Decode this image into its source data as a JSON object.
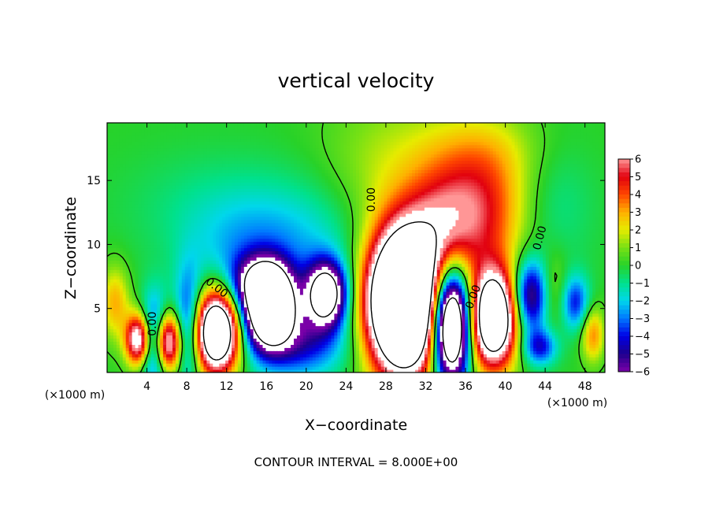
{
  "chart_data": {
    "type": "heatmap",
    "title": "vertical velocity",
    "xlabel": "X−coordinate",
    "ylabel": "Z−coordinate",
    "x_unit": "(×1000 m)",
    "y_unit": "(×1000 m)",
    "footer": "CONTOUR INTERVAL = 8.000E+00",
    "xlim": [
      0,
      50
    ],
    "ylim": [
      0,
      19.5
    ],
    "x_ticks": [
      4,
      8,
      12,
      16,
      20,
      24,
      28,
      32,
      36,
      40,
      44,
      48
    ],
    "y_ticks": [
      5,
      10,
      15
    ],
    "colorbar": {
      "min": -6,
      "max": 6,
      "ticks": [
        6,
        5,
        4,
        3,
        2,
        1,
        0,
        -1,
        -2,
        -3,
        -4,
        -5,
        -6
      ],
      "tick_labels": [
        "6",
        "5",
        "4",
        "3",
        "2",
        "1",
        "0",
        "−1",
        "−2",
        "−3",
        "−4",
        "−5",
        "−6"
      ]
    },
    "contour_labels": [
      {
        "text": "0.00",
        "x": 26.6,
        "y": 13.5,
        "rotate": -90
      },
      {
        "text": "0.00",
        "x": 11.0,
        "y": 6.6,
        "rotate": 38
      },
      {
        "text": "0.00",
        "x": 4.6,
        "y": 3.8,
        "rotate": -90
      },
      {
        "text": "0.00",
        "x": 36.8,
        "y": 5.9,
        "rotate": -70
      },
      {
        "text": "0.00",
        "x": 43.5,
        "y": 10.5,
        "rotate": -75
      }
    ],
    "features": [
      {
        "x": 3.2,
        "z": 2.6,
        "sx": 0.9,
        "sz": 1.4,
        "w": 9
      },
      {
        "x": 6.0,
        "z": 2.4,
        "sx": 1.0,
        "sz": 1.6,
        "w": 10
      },
      {
        "x": 11.0,
        "z": 3.2,
        "sx": 1.6,
        "sz": 2.2,
        "w": 14
      },
      {
        "x": 29.8,
        "z": 5.5,
        "sx": 2.5,
        "sz": 3.8,
        "w": 20
      },
      {
        "x": 38.8,
        "z": 4.2,
        "sx": 1.6,
        "sz": 2.6,
        "w": 13
      },
      {
        "x": 37.5,
        "z": 12.5,
        "sx": 3.5,
        "sz": 3.5,
        "w": 4.5
      },
      {
        "x": 33.5,
        "z": 11.0,
        "sx": 2.5,
        "sz": 3.0,
        "w": 3.0
      },
      {
        "x": 28.5,
        "z": 15.5,
        "sx": 5.0,
        "sz": 4.5,
        "w": 1.5
      },
      {
        "x": 38.0,
        "z": 17.5,
        "sx": 5.0,
        "sz": 2.5,
        "w": 1.5
      },
      {
        "x": 0.8,
        "z": 5.5,
        "sx": 1.0,
        "sz": 2.0,
        "w": 3.0
      },
      {
        "x": 48.8,
        "z": 3.0,
        "sx": 0.8,
        "sz": 1.5,
        "w": 3.5
      },
      {
        "x": 45.0,
        "z": 6.5,
        "sx": 1.0,
        "sz": 2.0,
        "w": 1.5
      },
      {
        "x": 16.3,
        "z": 5.0,
        "sx": 1.6,
        "sz": 1.9,
        "w": -14
      },
      {
        "x": 15.5,
        "z": 7.0,
        "sx": 2.0,
        "sz": 1.5,
        "w": -6
      },
      {
        "x": 22.0,
        "z": 6.2,
        "sx": 1.4,
        "sz": 1.7,
        "w": -10
      },
      {
        "x": 34.5,
        "z": 3.8,
        "sx": 1.3,
        "sz": 3.0,
        "w": -16
      },
      {
        "x": 4.8,
        "z": 2.5,
        "sx": 1.0,
        "sz": 2.3,
        "w": -7
      },
      {
        "x": 8.2,
        "z": 3.5,
        "sx": 1.0,
        "sz": 3.0,
        "w": -5
      },
      {
        "x": 19.0,
        "z": 2.5,
        "sx": 3.5,
        "sz": 2.0,
        "w": -4.5
      },
      {
        "x": 42.5,
        "z": 6.0,
        "sx": 1.2,
        "sz": 2.0,
        "w": -6
      },
      {
        "x": 43.5,
        "z": 2.0,
        "sx": 1.2,
        "sz": 1.0,
        "w": -4
      },
      {
        "x": 47.0,
        "z": 5.5,
        "sx": 1.0,
        "sz": 1.5,
        "w": -4
      },
      {
        "x": 19.5,
        "z": 10.0,
        "sx": 5.0,
        "sz": 3.5,
        "w": -2.0
      },
      {
        "x": 13.0,
        "z": 9.0,
        "sx": 4.0,
        "sz": 3.0,
        "w": -1.5
      },
      {
        "x": 44.5,
        "z": 13.5,
        "sx": 3.0,
        "sz": 4.0,
        "w": -1.2
      },
      {
        "x": 10.0,
        "z": 13.0,
        "sx": 6.0,
        "sz": 3.0,
        "w": -0.8
      }
    ]
  }
}
